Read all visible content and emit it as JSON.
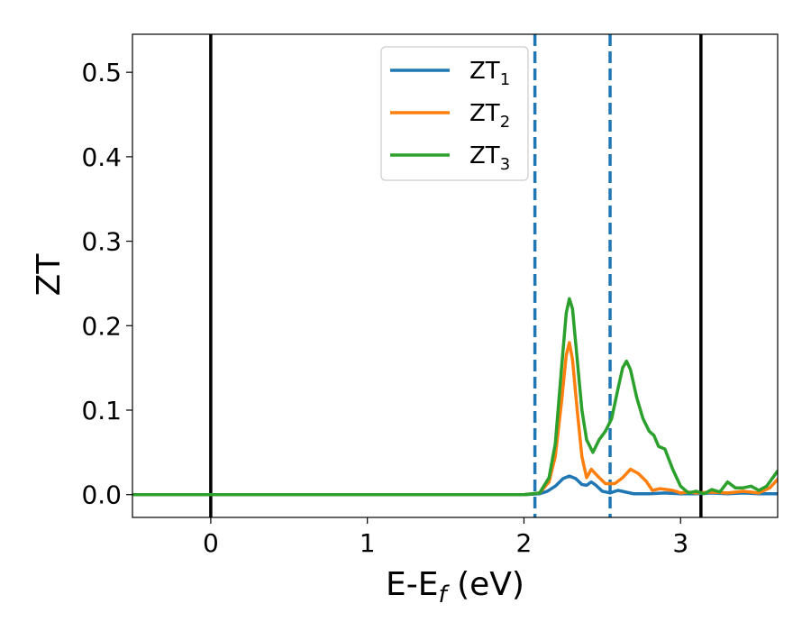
{
  "chart_data": {
    "type": "line",
    "xlabel": "E-E_f (eV)",
    "xlabel_parts": {
      "main": "E-E",
      "sub": "f",
      "tail": " (eV)"
    },
    "ylabel": "ZT",
    "xlim": [
      -0.5,
      3.62
    ],
    "ylim": [
      -0.027,
      0.545
    ],
    "xticks": [
      0,
      1,
      2,
      3
    ],
    "xtick_labels": [
      "0",
      "1",
      "2",
      "3"
    ],
    "yticks": [
      0.0,
      0.1,
      0.2,
      0.3,
      0.4,
      0.5
    ],
    "ytick_labels": [
      "0.0",
      "0.1",
      "0.2",
      "0.3",
      "0.4",
      "0.5"
    ],
    "legend_position": "upper-center",
    "vertical_lines": [
      {
        "x": 0.0,
        "style": "solid",
        "color": "#000000"
      },
      {
        "x": 3.13,
        "style": "solid",
        "color": "#000000"
      },
      {
        "x": 2.07,
        "style": "dashed",
        "color": "#1f77b4"
      },
      {
        "x": 2.55,
        "style": "dashed",
        "color": "#1f77b4"
      }
    ],
    "series": [
      {
        "name": "ZT_1",
        "label_main": "ZT",
        "label_sub": "1",
        "color": "#1f77b4",
        "points": [
          [
            -0.5,
            0
          ],
          [
            2.0,
            0
          ],
          [
            2.1,
            0.001
          ],
          [
            2.15,
            0.004
          ],
          [
            2.2,
            0.01
          ],
          [
            2.25,
            0.019
          ],
          [
            2.29,
            0.022
          ],
          [
            2.33,
            0.019
          ],
          [
            2.37,
            0.012
          ],
          [
            2.4,
            0.011
          ],
          [
            2.43,
            0.015
          ],
          [
            2.46,
            0.011
          ],
          [
            2.5,
            0.004
          ],
          [
            2.55,
            0.002
          ],
          [
            2.6,
            0.005
          ],
          [
            2.65,
            0.003
          ],
          [
            2.7,
            0.001
          ],
          [
            2.8,
            0.001
          ],
          [
            2.9,
            0.002
          ],
          [
            3.0,
            0.001
          ],
          [
            3.1,
            0.001
          ],
          [
            3.2,
            0.002
          ],
          [
            3.3,
            0.001
          ],
          [
            3.4,
            0.002
          ],
          [
            3.5,
            0.001
          ],
          [
            3.62,
            0.001
          ]
        ]
      },
      {
        "name": "ZT_2",
        "label_main": "ZT",
        "label_sub": "2",
        "color": "#ff7f0e",
        "points": [
          [
            -0.5,
            0
          ],
          [
            2.0,
            0
          ],
          [
            2.1,
            0.002
          ],
          [
            2.16,
            0.015
          ],
          [
            2.2,
            0.045
          ],
          [
            2.24,
            0.11
          ],
          [
            2.27,
            0.165
          ],
          [
            2.29,
            0.18
          ],
          [
            2.31,
            0.16
          ],
          [
            2.34,
            0.1
          ],
          [
            2.37,
            0.045
          ],
          [
            2.4,
            0.02
          ],
          [
            2.43,
            0.03
          ],
          [
            2.47,
            0.022
          ],
          [
            2.52,
            0.013
          ],
          [
            2.58,
            0.013
          ],
          [
            2.63,
            0.02
          ],
          [
            2.68,
            0.03
          ],
          [
            2.73,
            0.025
          ],
          [
            2.78,
            0.016
          ],
          [
            2.82,
            0.005
          ],
          [
            2.87,
            0.007
          ],
          [
            2.95,
            0.005
          ],
          [
            3.0,
            0.002
          ],
          [
            3.05,
            0.003
          ],
          [
            3.1,
            0.002
          ],
          [
            3.2,
            0.003
          ],
          [
            3.3,
            0.002
          ],
          [
            3.4,
            0.004
          ],
          [
            3.5,
            0.002
          ],
          [
            3.57,
            0.008
          ],
          [
            3.62,
            0.018
          ]
        ]
      },
      {
        "name": "ZT_3",
        "label_main": "ZT",
        "label_sub": "3",
        "color": "#2ca02c",
        "points": [
          [
            -0.5,
            0
          ],
          [
            2.0,
            0
          ],
          [
            2.1,
            0.002
          ],
          [
            2.16,
            0.02
          ],
          [
            2.2,
            0.06
          ],
          [
            2.24,
            0.15
          ],
          [
            2.27,
            0.215
          ],
          [
            2.29,
            0.232
          ],
          [
            2.31,
            0.22
          ],
          [
            2.34,
            0.16
          ],
          [
            2.37,
            0.1
          ],
          [
            2.4,
            0.065
          ],
          [
            2.44,
            0.05
          ],
          [
            2.48,
            0.065
          ],
          [
            2.52,
            0.075
          ],
          [
            2.56,
            0.09
          ],
          [
            2.6,
            0.125
          ],
          [
            2.63,
            0.15
          ],
          [
            2.655,
            0.158
          ],
          [
            2.68,
            0.148
          ],
          [
            2.72,
            0.115
          ],
          [
            2.76,
            0.09
          ],
          [
            2.8,
            0.075
          ],
          [
            2.83,
            0.07
          ],
          [
            2.86,
            0.057
          ],
          [
            2.9,
            0.054
          ],
          [
            2.95,
            0.03
          ],
          [
            3.0,
            0.01
          ],
          [
            3.05,
            0.002
          ],
          [
            3.1,
            0.004
          ],
          [
            3.15,
            0.001
          ],
          [
            3.2,
            0.006
          ],
          [
            3.25,
            0.003
          ],
          [
            3.3,
            0.015
          ],
          [
            3.35,
            0.008
          ],
          [
            3.4,
            0.008
          ],
          [
            3.45,
            0.01
          ],
          [
            3.5,
            0.005
          ],
          [
            3.55,
            0.01
          ],
          [
            3.62,
            0.028
          ]
        ]
      }
    ]
  }
}
